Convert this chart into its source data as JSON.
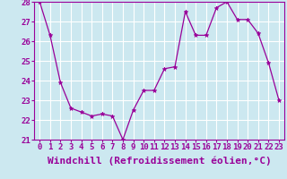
{
  "x": [
    0,
    1,
    2,
    3,
    4,
    5,
    6,
    7,
    8,
    9,
    10,
    11,
    12,
    13,
    14,
    15,
    16,
    17,
    18,
    19,
    20,
    21,
    22,
    23
  ],
  "y": [
    28.0,
    26.3,
    23.9,
    22.6,
    22.4,
    22.2,
    22.3,
    22.2,
    21.0,
    22.5,
    23.5,
    23.5,
    24.6,
    24.7,
    27.5,
    26.3,
    26.3,
    27.7,
    28.0,
    27.1,
    27.1,
    26.4,
    24.9,
    23.0
  ],
  "line_color": "#990099",
  "marker": "*",
  "marker_size": 3.5,
  "xlim": [
    -0.5,
    23.5
  ],
  "ylim": [
    21,
    28
  ],
  "yticks": [
    21,
    22,
    23,
    24,
    25,
    26,
    27,
    28
  ],
  "xtick_labels": [
    "0",
    "1",
    "2",
    "3",
    "4",
    "5",
    "6",
    "7",
    "8",
    "9",
    "10",
    "11",
    "12",
    "13",
    "14",
    "15",
    "16",
    "17",
    "18",
    "19",
    "20",
    "21",
    "22",
    "23"
  ],
  "xlabel": "Windchill (Refroidissement éolien,°C)",
  "background_color": "#cce8f0",
  "grid_color": "#ffffff",
  "tick_color": "#990099",
  "label_color": "#990099",
  "tick_fontsize": 6.5,
  "label_fontsize": 8
}
